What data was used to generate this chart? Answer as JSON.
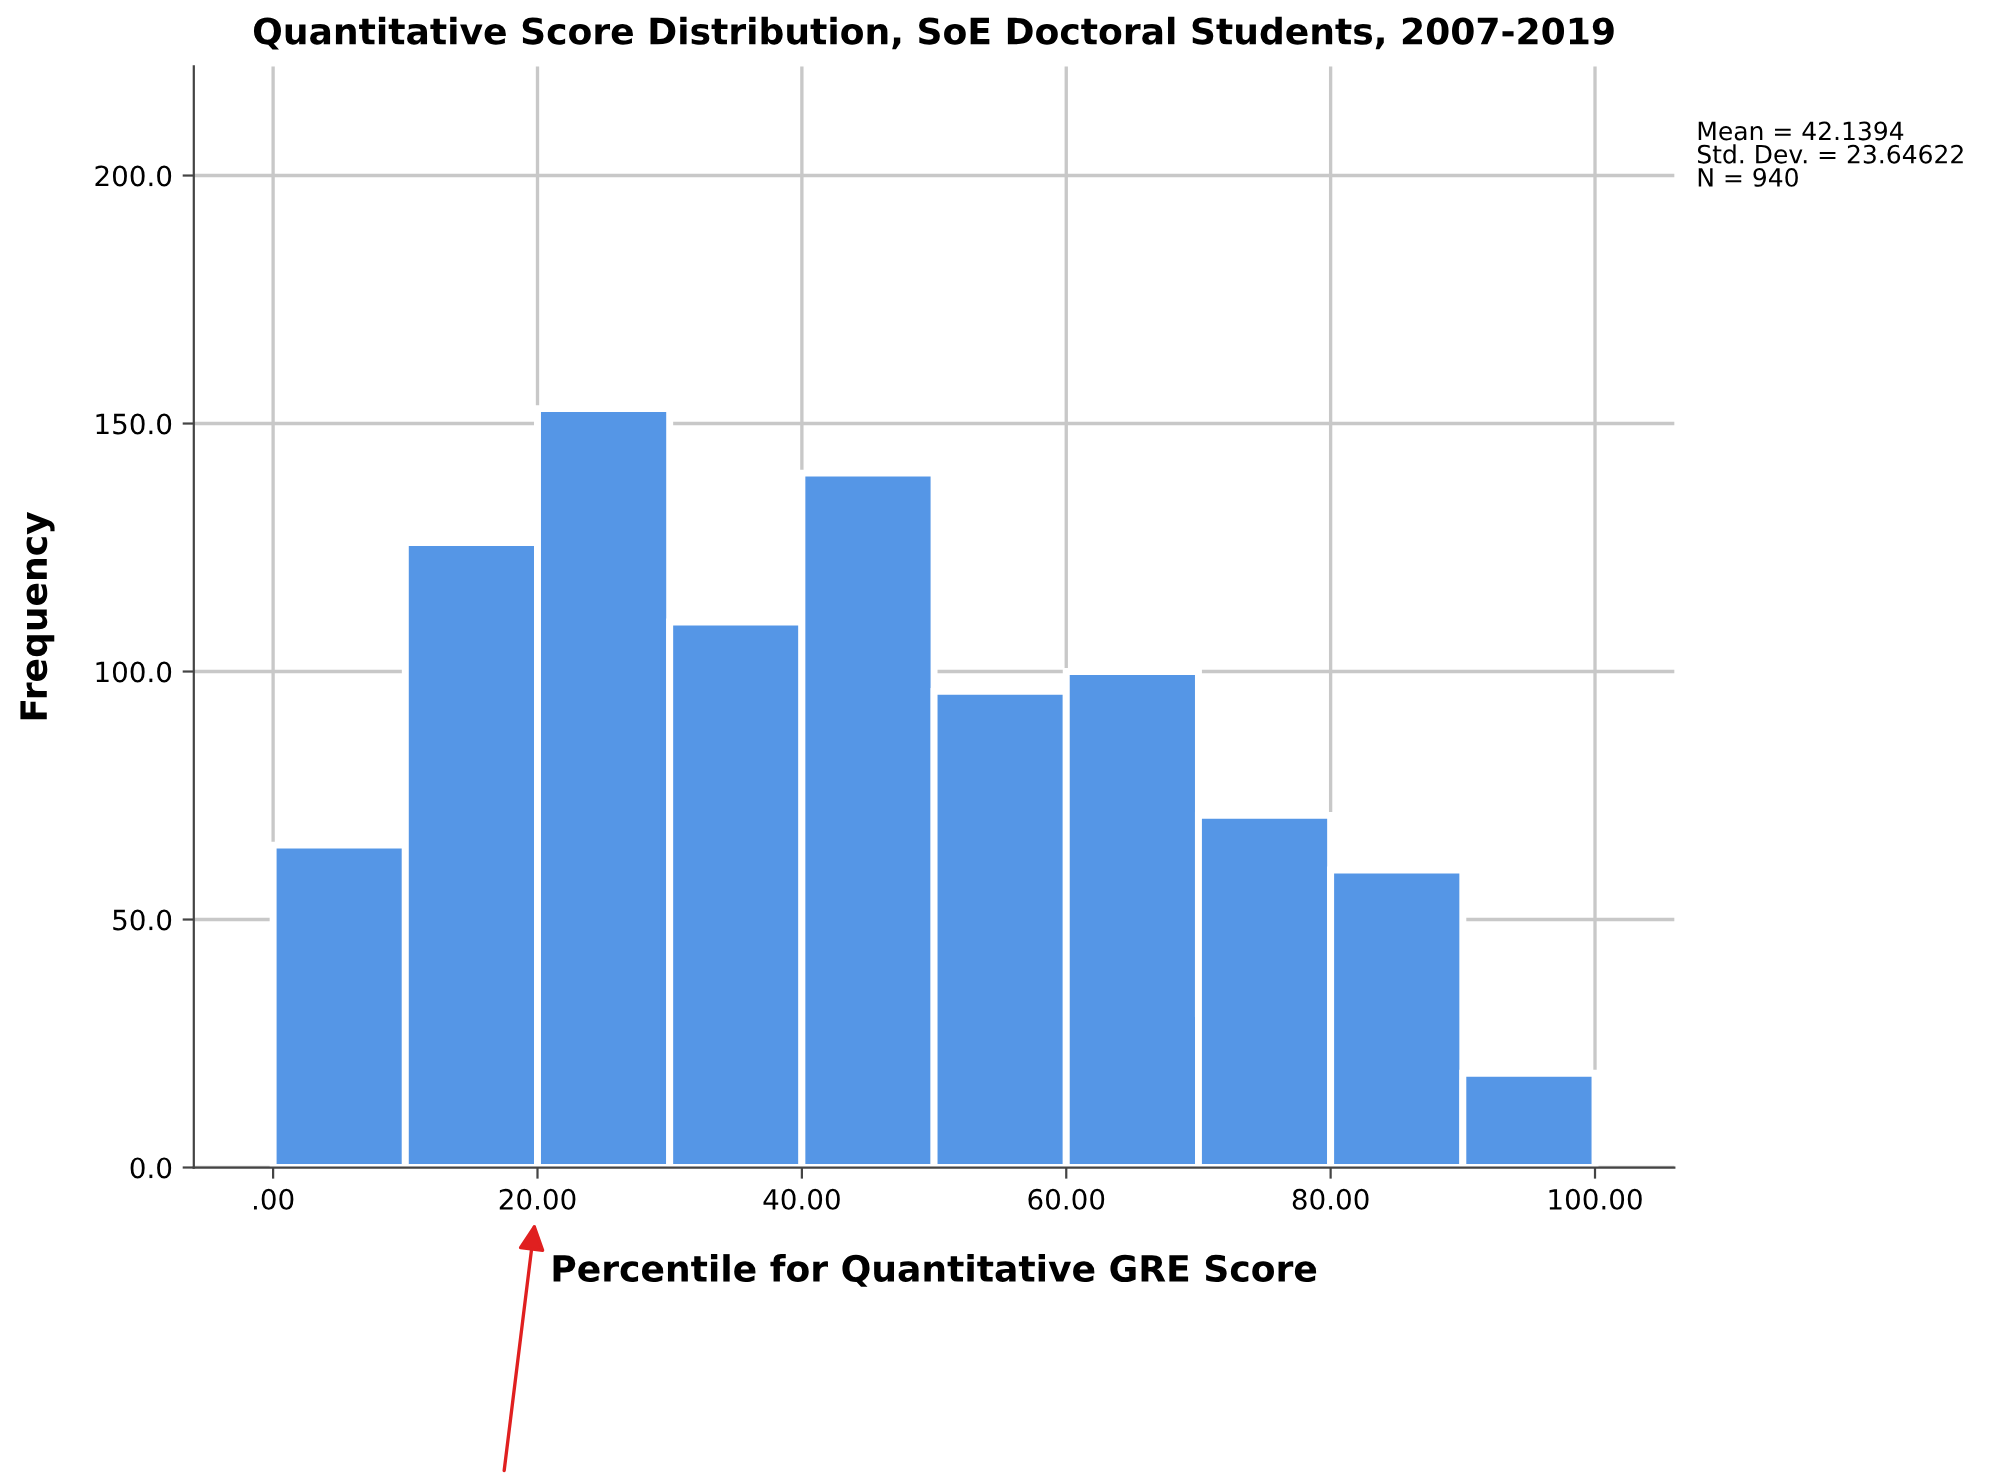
{
  "chart_data": {
    "type": "histogram",
    "title": "Quantitative Score Distribution, SoE Doctoral Students, 2007-2019",
    "xlabel": "Percentile for Quantitative GRE Score",
    "ylabel": "Frequency",
    "bins": [
      0,
      10,
      20,
      30,
      40,
      50,
      60,
      70,
      80,
      90,
      100
    ],
    "values": [
      65,
      126,
      153,
      110,
      140,
      96,
      100,
      71,
      60,
      19
    ],
    "color": "#5596e6",
    "xlim": [
      -6,
      106
    ],
    "xticks": [
      {
        "value": 0,
        "label": ".00"
      },
      {
        "value": 20,
        "label": "20.00"
      },
      {
        "value": 40,
        "label": "40.00"
      },
      {
        "value": 60,
        "label": "60.00"
      },
      {
        "value": 80,
        "label": "80.00"
      },
      {
        "value": 100,
        "label": "100.00"
      }
    ],
    "ylim": [
      0,
      222
    ],
    "yticks": [
      {
        "value": 0,
        "label": "0.0"
      },
      {
        "value": 50,
        "label": "50.0"
      },
      {
        "value": 100,
        "label": "100.0"
      },
      {
        "value": 150,
        "label": "150.0"
      },
      {
        "value": 200,
        "label": "200.0"
      }
    ],
    "grid": true,
    "annotations": [
      "Mean = 42.1394\nStd. Dev. = 23.64622\nN = 940"
    ]
  }
}
